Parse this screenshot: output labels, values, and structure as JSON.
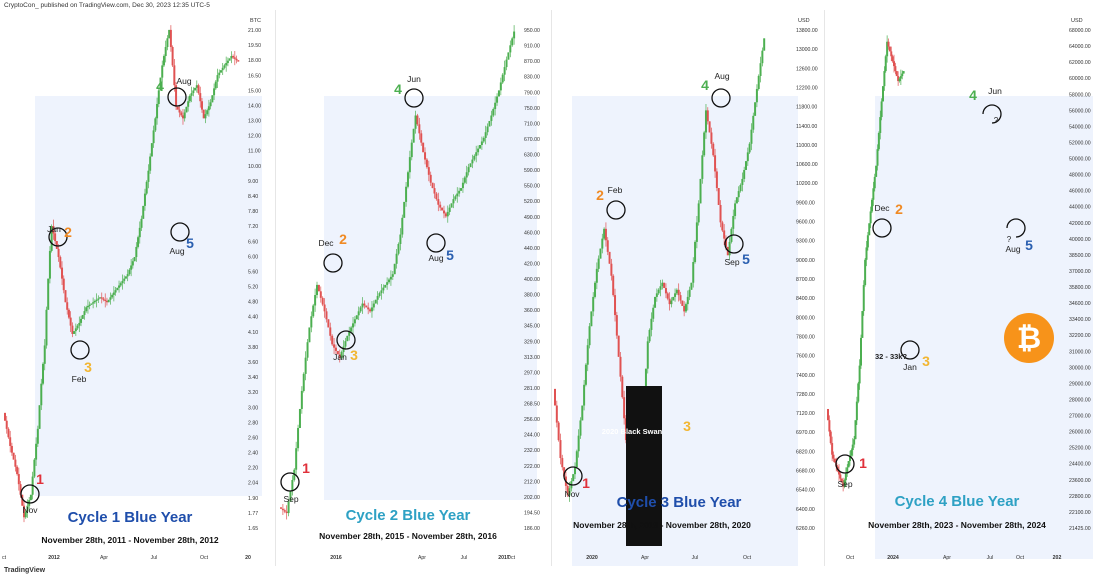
{
  "header": {
    "credit": "CryptoCon_ published on TradingView.com, Dec 30, 2023 12:35 UTC-5",
    "footer_logo": "TradingView"
  },
  "colors": {
    "shade": "#eef3fd",
    "up": "#4caf50",
    "down": "#e05252",
    "title": "#1f4eab",
    "title_c2": "#2ea1c4",
    "title_c4": "#2ea1c4",
    "num1": "#e0303a",
    "num2": "#f08a24",
    "num3": "#f2b632",
    "num4": "#4caf50",
    "num5": "#2a5fb0",
    "btc": "#f7931a"
  },
  "chart_data": [
    {
      "type": "candlestick",
      "title": "Cycle 1 Blue Year",
      "subtitle": "November 28th, 2011 - November 28th, 2012",
      "currency": "BTC",
      "y_ticks": [
        "21.00",
        "19.50",
        "18.00",
        "16.50",
        "15.00",
        "14.00",
        "13.00",
        "12.00",
        "11.00",
        "10.00",
        "9.00",
        "8.40",
        "7.80",
        "7.20",
        "6.60",
        "6.00",
        "5.60",
        "5.20",
        "4.80",
        "4.40",
        "4.10",
        "3.80",
        "3.60",
        "3.40",
        "3.20",
        "3.00",
        "2.80",
        "2.60",
        "2.40",
        "2.20",
        "2.04",
        "1.90",
        "1.77",
        "1.65"
      ],
      "x_ticks": [
        "ct",
        "2012",
        "Apr",
        "Jul",
        "Oct",
        "20"
      ],
      "scale": "log",
      "points": [
        {
          "n": "1",
          "label": "Nov",
          "value": 2.04
        },
        {
          "n": "2",
          "label": "Jan",
          "value": 6.8
        },
        {
          "n": "3",
          "label": "Feb",
          "value": 4.4
        },
        {
          "n": "4",
          "label": "Aug",
          "value": 15.0
        },
        {
          "n": "5",
          "label": "Aug",
          "value": 7.6
        }
      ],
      "path": [
        3.2,
        2.8,
        2.5,
        2.1,
        2.3,
        3.0,
        4.2,
        6.8,
        6.0,
        5.0,
        4.4,
        4.6,
        4.9,
        5.0,
        5.1,
        5.0,
        5.2,
        5.4,
        5.6,
        6.0,
        7.0,
        8.5,
        10.5,
        13.0,
        15.0,
        11.0,
        10.5,
        11.5,
        12.0,
        10.5,
        11.2,
        12.5,
        13.0,
        13.5,
        13.2
      ]
    },
    {
      "type": "candlestick",
      "title": "Cycle 2 Blue Year",
      "subtitle": "November 28th, 2015 - November 28th, 2016",
      "currency": "",
      "y_ticks": [
        "950.00",
        "910.00",
        "870.00",
        "830.00",
        "790.00",
        "750.00",
        "710.00",
        "670.00",
        "630.00",
        "590.00",
        "550.00",
        "520.00",
        "490.00",
        "460.00",
        "440.00",
        "420.00",
        "400.00",
        "380.00",
        "360.00",
        "345.00",
        "329.00",
        "313.00",
        "297.00",
        "281.00",
        "268.50",
        "256.00",
        "244.00",
        "232.00",
        "222.00",
        "212.00",
        "202.00",
        "194.50",
        "186.00"
      ],
      "x_ticks": [
        "2016",
        "Apr",
        "Jul",
        "Oct",
        "2017"
      ],
      "scale": "log",
      "points": [
        {
          "n": "1",
          "label": "Sep",
          "value": 228
        },
        {
          "n": "2",
          "label": "Dec",
          "value": 455
        },
        {
          "n": "3",
          "label": "Jan",
          "value": 365
        },
        {
          "n": "4",
          "label": "Jun",
          "value": 760
        },
        {
          "n": "5",
          "label": "Aug",
          "value": 500
        }
      ],
      "path": [
        232,
        228,
        260,
        330,
        400,
        455,
        420,
        380,
        365,
        390,
        410,
        430,
        420,
        440,
        455,
        470,
        530,
        640,
        760,
        680,
        620,
        580,
        560,
        590,
        610,
        650,
        680,
        710,
        760,
        820,
        900,
        980
      ]
    },
    {
      "type": "candlestick",
      "title": "Cycle 3 Blue Year",
      "subtitle": "November 28th, 2019 - November 28th, 2020",
      "currency": "USD",
      "y_ticks": [
        "13800.00",
        "13000.00",
        "12600.00",
        "12200.00",
        "11800.00",
        "11400.00",
        "11000.00",
        "10600.00",
        "10200.00",
        "9900.00",
        "9600.00",
        "9300.00",
        "9000.00",
        "8700.00",
        "8400.00",
        "8000.00",
        "7800.00",
        "7600.00",
        "7400.00",
        "7280.00",
        "7120.00",
        "6970.00",
        "6820.00",
        "6680.00",
        "6540.00",
        "6400.00",
        "6260.00"
      ],
      "x_ticks": [
        "2020",
        "Apr",
        "Jul",
        "Oct"
      ],
      "scale": "log",
      "points": [
        {
          "n": "1",
          "label": "Nov",
          "value": 6970
        },
        {
          "n": "2",
          "label": "Feb",
          "value": 10400
        },
        {
          "n": "3",
          "label": "2020 Black Swan",
          "value": 7400
        },
        {
          "n": "4",
          "label": "Aug",
          "value": 12400
        },
        {
          "n": "5",
          "label": "Sep",
          "value": 10000
        }
      ],
      "path": [
        8200,
        7400,
        7000,
        7300,
        8000,
        9000,
        9800,
        10400,
        9700,
        8600,
        7600,
        7200,
        7400,
        8800,
        9400,
        9600,
        9300,
        9500,
        9200,
        9600,
        10800,
        12400,
        11600,
        10500,
        10000,
        10800,
        11200,
        11800,
        12800,
        13800
      ]
    },
    {
      "type": "candlestick",
      "title": "Cycle 4 Blue Year",
      "subtitle": "November 28th, 2023 - November 28th, 2024",
      "currency": "USD",
      "y_ticks": [
        "68000.00",
        "64000.00",
        "62000.00",
        "60000.00",
        "58000.00",
        "56000.00",
        "54000.00",
        "52000.00",
        "50000.00",
        "48000.00",
        "46000.00",
        "44000.00",
        "42000.00",
        "40000.00",
        "38500.00",
        "37000.00",
        "35800.00",
        "34600.00",
        "33400.00",
        "32200.00",
        "31000.00",
        "30000.00",
        "29000.00",
        "28000.00",
        "27000.00",
        "26000.00",
        "25200.00",
        "24400.00",
        "23600.00",
        "22800.00",
        "22100.00",
        "21425.00"
      ],
      "x_ticks": [
        "Oct",
        "2024",
        "Apr",
        "Jul",
        "Oct",
        "202"
      ],
      "scale": "log",
      "points": [
        {
          "n": "1",
          "label": "Sep",
          "value": 26000
        },
        {
          "n": "2",
          "label": "Dec",
          "value": 44000
        },
        {
          "n": "3",
          "label": "Jan",
          "value": 33500
        },
        {
          "n": "4",
          "label": "Jun",
          "value": 60000
        },
        {
          "n": "5",
          "label": "Aug",
          "value": 44000
        }
      ],
      "annotations": [
        "32 - 33k?",
        "?",
        "?"
      ],
      "path": [
        28500,
        27000,
        26500,
        26000,
        26800,
        27500,
        30000,
        34000,
        36000,
        38000,
        41000,
        44000,
        43000,
        42000,
        42500
      ]
    }
  ]
}
